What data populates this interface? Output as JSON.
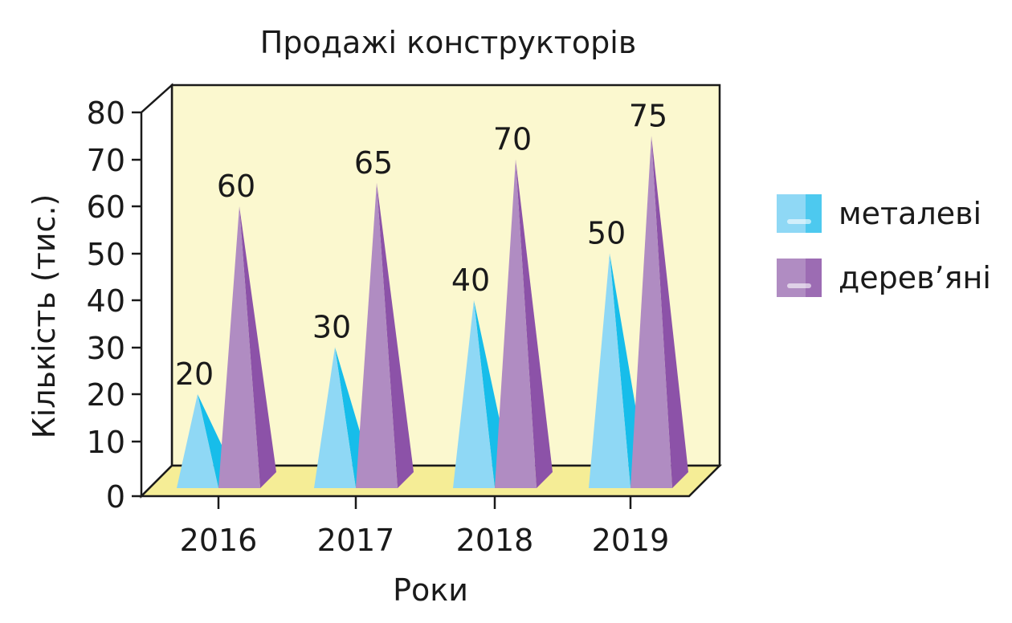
{
  "chart_data": {
    "type": "bar",
    "style": "3d-pyramid",
    "title": "Продажі конструкторів",
    "xlabel": "Роки",
    "ylabel": "Кількість (тис.)",
    "categories": [
      "2016",
      "2017",
      "2018",
      "2019"
    ],
    "ylim": [
      0,
      80
    ],
    "yticks": [
      0,
      10,
      20,
      30,
      40,
      50,
      60,
      70,
      80
    ],
    "series": [
      {
        "name": "металеві",
        "values": [
          20,
          30,
          40,
          50
        ],
        "color": "#8fd8f5",
        "shade": "#17bdea"
      },
      {
        "name": "дерев’яні",
        "values": [
          60,
          65,
          70,
          75
        ],
        "color": "#b08cc2",
        "shade": "#8c52a8"
      }
    ],
    "legend_position": "right",
    "wall_color": "#fbf8cf",
    "floor_color": "#f5ed96"
  }
}
